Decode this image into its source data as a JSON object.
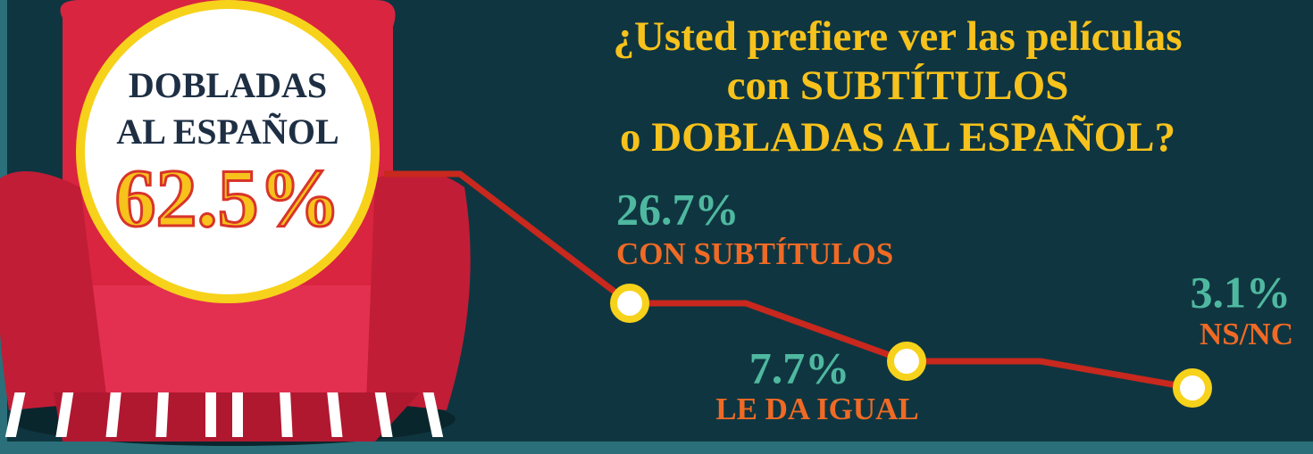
{
  "title_lines": [
    "¿Usted prefiere ver las películas",
    "con SUBTÍTULOS",
    "o DOBLADAS AL ESPAÑOL?"
  ],
  "highlight": {
    "label_lines": [
      "DOBLADAS",
      "AL ESPAÑOL"
    ],
    "value": "62.5%"
  },
  "items": [
    {
      "value": "26.7%",
      "label": "CON SUBTÍTULOS"
    },
    {
      "value": "7.7%",
      "label": "LE DA IGUAL"
    },
    {
      "value": "3.1%",
      "label": "NS/NC"
    }
  ]
}
